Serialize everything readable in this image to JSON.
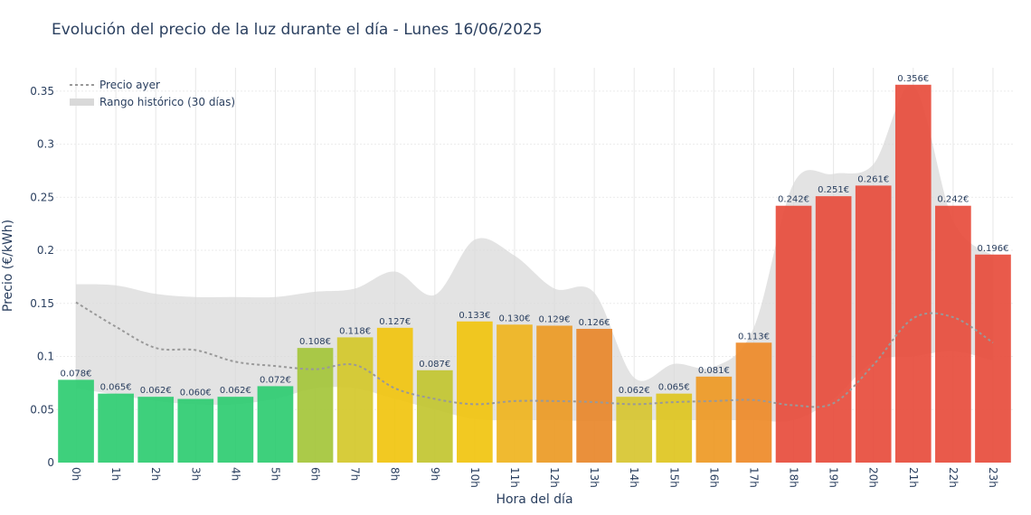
{
  "chart_data": {
    "type": "bar",
    "title": "Evolución del precio de la luz durante el día - Lunes 16/06/2025",
    "xlabel": "Hora del día",
    "ylabel": "Precio (€/kWh)",
    "ylim": [
      0,
      0.372
    ],
    "yticks": [
      0,
      0.05,
      0.1,
      0.15,
      0.2,
      0.25,
      0.3,
      0.35
    ],
    "ytick_labels": [
      "0",
      "0.05",
      "0.1",
      "0.15",
      "0.2",
      "0.25",
      "0.3",
      "0.35"
    ],
    "grid": true,
    "legend_position": "top-left",
    "categories": [
      "0h",
      "1h",
      "2h",
      "3h",
      "4h",
      "5h",
      "6h",
      "7h",
      "8h",
      "9h",
      "10h",
      "11h",
      "12h",
      "13h",
      "14h",
      "15h",
      "16h",
      "17h",
      "18h",
      "19h",
      "20h",
      "21h",
      "22h",
      "23h"
    ],
    "series": [
      {
        "kind": "bar",
        "values": [
          0.078,
          0.065,
          0.062,
          0.06,
          0.062,
          0.072,
          0.108,
          0.118,
          0.127,
          0.087,
          0.133,
          0.13,
          0.129,
          0.126,
          0.062,
          0.065,
          0.081,
          0.113,
          0.242,
          0.251,
          0.261,
          0.356,
          0.242,
          0.196
        ],
        "labels": [
          "0.078€",
          "0.065€",
          "0.062€",
          "0.060€",
          "0.062€",
          "0.072€",
          "0.108€",
          "0.118€",
          "0.127€",
          "0.087€",
          "0.133€",
          "0.130€",
          "0.129€",
          "0.126€",
          "0.062€",
          "0.065€",
          "0.081€",
          "0.113€",
          "0.242€",
          "0.251€",
          "0.261€",
          "0.356€",
          "0.242€",
          "0.196€"
        ],
        "colors": [
          "#2ecc71",
          "#2ecc71",
          "#2ecc71",
          "#2ecc71",
          "#2ecc71",
          "#2ecc71",
          "#a4c639",
          "#d4c82a",
          "#f1c40f",
          "#c2c530",
          "#f1c40f",
          "#efb41e",
          "#ec9a24",
          "#e8872a",
          "#d7c530",
          "#dec61f",
          "#ee9924",
          "#ee8a28",
          "#e74c3c",
          "#e74c3c",
          "#e74c3c",
          "#e74c3c",
          "#e74c3c",
          "#e74c3c"
        ]
      },
      {
        "kind": "line",
        "name": "Precio ayer",
        "color": "#999999",
        "values": [
          0.151,
          0.128,
          0.108,
          0.106,
          0.095,
          0.091,
          0.088,
          0.092,
          0.07,
          0.06,
          0.055,
          0.058,
          0.058,
          0.057,
          0.055,
          0.057,
          0.058,
          0.059,
          0.054,
          0.056,
          0.092,
          0.136,
          0.137,
          0.113
        ]
      },
      {
        "kind": "band",
        "name": "Rango histórico (30 días)",
        "color": "#d9d9d9",
        "upper": [
          0.168,
          0.167,
          0.159,
          0.156,
          0.156,
          0.156,
          0.161,
          0.164,
          0.18,
          0.158,
          0.21,
          0.195,
          0.164,
          0.16,
          0.08,
          0.093,
          0.09,
          0.127,
          0.263,
          0.272,
          0.281,
          0.355,
          0.228,
          0.195
        ],
        "lower": [
          0.07,
          0.064,
          0.058,
          0.055,
          0.055,
          0.06,
          0.07,
          0.07,
          0.06,
          0.05,
          0.041,
          0.04,
          0.04,
          0.039,
          0.04,
          0.04,
          0.04,
          0.04,
          0.04,
          0.06,
          0.095,
          0.1,
          0.105,
          0.096
        ]
      }
    ]
  }
}
